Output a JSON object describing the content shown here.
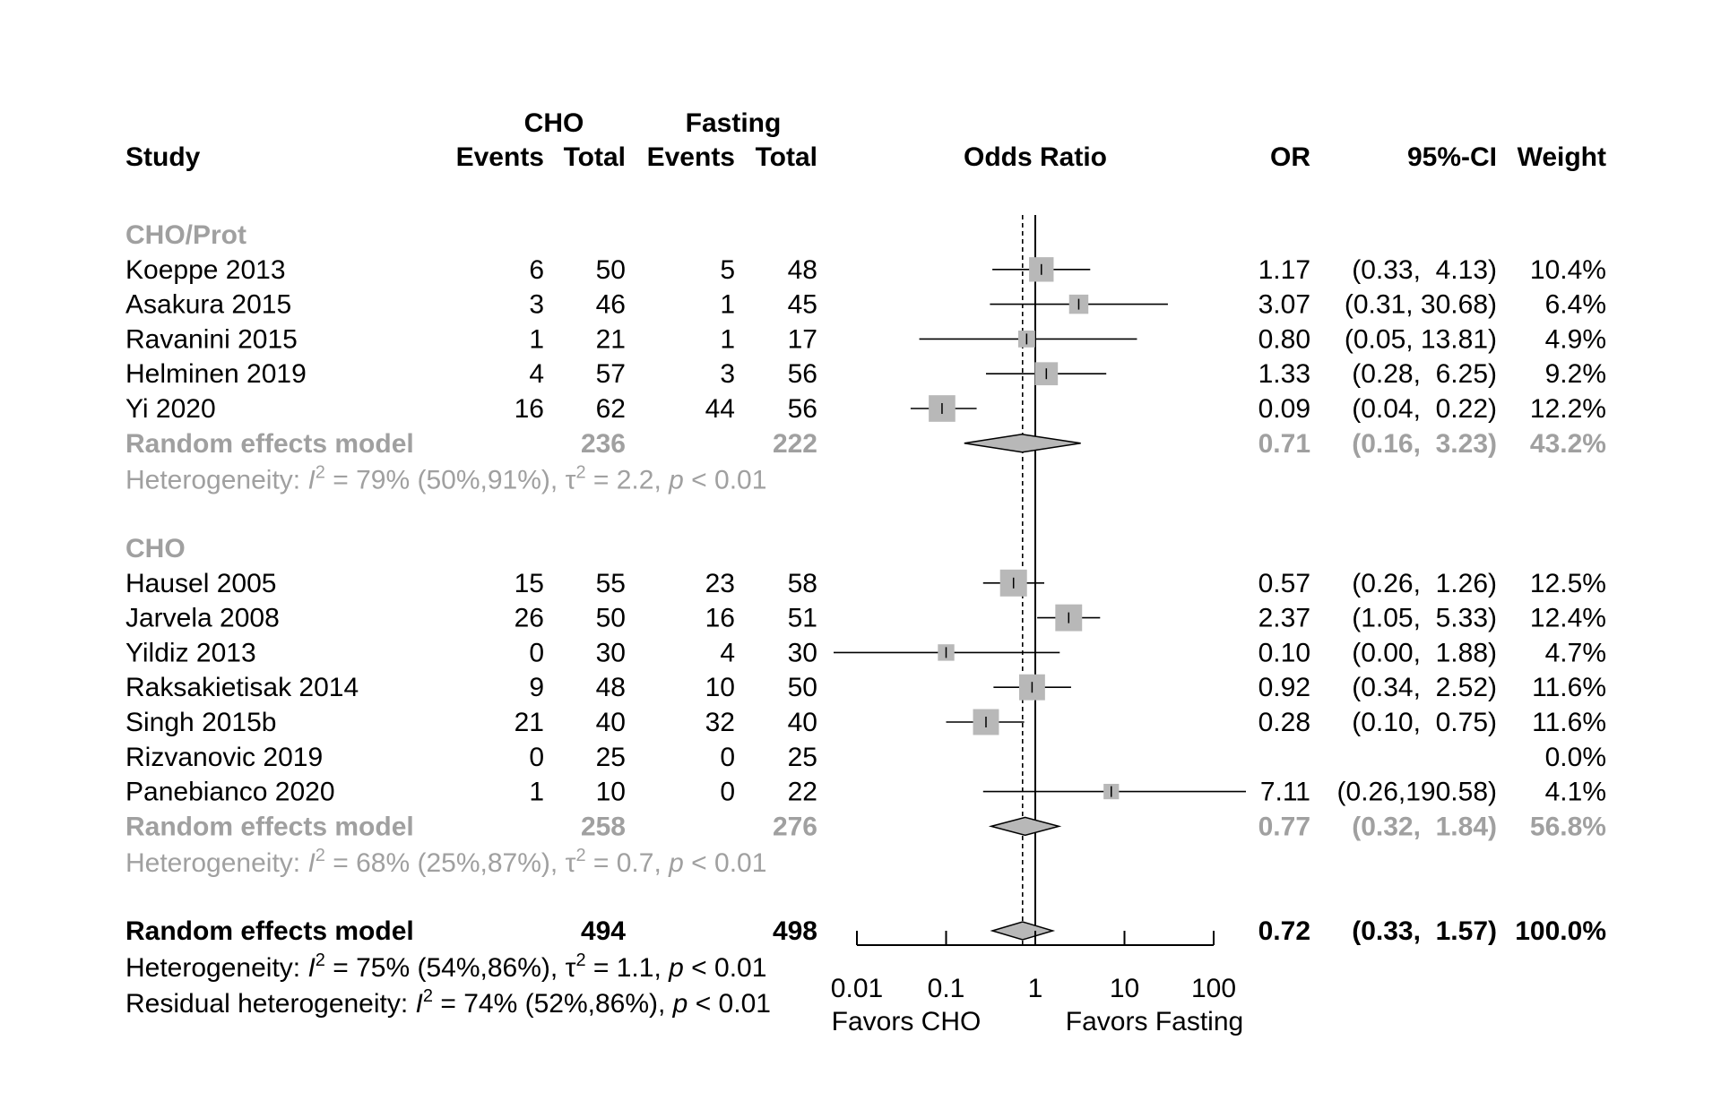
{
  "chart_data": {
    "type": "forest",
    "measure": "Odds Ratio",
    "x_scale": "log",
    "xlim": [
      0.01,
      100
    ],
    "ticks": [
      {
        "value": 0.01,
        "label": "0.01"
      },
      {
        "value": 0.1,
        "label": "0.1"
      },
      {
        "value": 1,
        "label": "1"
      },
      {
        "value": 10,
        "label": "10"
      },
      {
        "value": 100,
        "label": "100"
      }
    ],
    "favors_left": "Favors CHO",
    "favors_right": "Favors Fasting",
    "reference_value": 1,
    "pooled_line_value": 0.72,
    "headers": {
      "group1": "CHO",
      "group2": "Fasting",
      "study": "Study",
      "events1": "Events",
      "total1": "Total",
      "events2": "Events",
      "total2": "Total",
      "plot": "Odds Ratio",
      "or": "OR",
      "ci": "95%-CI",
      "weight": "Weight"
    },
    "subgroups": [
      {
        "name": "CHO/Prot",
        "studies": [
          {
            "study": "Koeppe 2013",
            "e1": "6",
            "n1": "50",
            "e2": "5",
            "n2": "48",
            "or": 1.17,
            "lo": 0.33,
            "hi": 4.13,
            "or_text": "1.17",
            "ci_text": "(0.33,  4.13)",
            "weight": "10.4%",
            "w": 10.4
          },
          {
            "study": "Asakura 2015",
            "e1": "3",
            "n1": "46",
            "e2": "1",
            "n2": "45",
            "or": 3.07,
            "lo": 0.31,
            "hi": 30.68,
            "or_text": "3.07",
            "ci_text": "(0.31, 30.68)",
            "weight": "6.4%",
            "w": 6.4
          },
          {
            "study": "Ravanini 2015",
            "e1": "1",
            "n1": "21",
            "e2": "1",
            "n2": "17",
            "or": 0.8,
            "lo": 0.05,
            "hi": 13.81,
            "or_text": "0.80",
            "ci_text": "(0.05, 13.81)",
            "weight": "4.9%",
            "w": 4.9
          },
          {
            "study": "Helminen 2019",
            "e1": "4",
            "n1": "57",
            "e2": "3",
            "n2": "56",
            "or": 1.33,
            "lo": 0.28,
            "hi": 6.25,
            "or_text": "1.33",
            "ci_text": "(0.28,  6.25)",
            "weight": "9.2%",
            "w": 9.2
          },
          {
            "study": "Yi 2020",
            "e1": "16",
            "n1": "62",
            "e2": "44",
            "n2": "56",
            "or": 0.09,
            "lo": 0.04,
            "hi": 0.22,
            "or_text": "0.09",
            "ci_text": "(0.04,  0.22)",
            "weight": "12.2%",
            "w": 12.2
          }
        ],
        "model": {
          "label": "Random effects model",
          "n1": "236",
          "n2": "222",
          "or": 0.71,
          "lo": 0.16,
          "hi": 3.23,
          "or_text": "0.71",
          "ci_text": "(0.16,  3.23)",
          "weight": "43.2%"
        },
        "heterogeneity": {
          "prefix": "Heterogeneity: ",
          "I": "I",
          "sup": "2",
          "mid": " = 79% (50%,91%), ",
          "tau": "τ",
          "tau_sup": "2",
          "tau_val": " = 2.2, ",
          "p": "p",
          "p_val": " < 0.01"
        }
      },
      {
        "name": "CHO",
        "studies": [
          {
            "study": "Hausel 2005",
            "e1": "15",
            "n1": "55",
            "e2": "23",
            "n2": "58",
            "or": 0.57,
            "lo": 0.26,
            "hi": 1.26,
            "or_text": "0.57",
            "ci_text": "(0.26,  1.26)",
            "weight": "12.5%",
            "w": 12.5
          },
          {
            "study": "Jarvela 2008",
            "e1": "26",
            "n1": "50",
            "e2": "16",
            "n2": "51",
            "or": 2.37,
            "lo": 1.05,
            "hi": 5.33,
            "or_text": "2.37",
            "ci_text": "(1.05,  5.33)",
            "weight": "12.4%",
            "w": 12.4
          },
          {
            "study": "Yildiz 2013",
            "e1": "0",
            "n1": "30",
            "e2": "4",
            "n2": "30",
            "or": 0.1,
            "lo": 0.005,
            "hi": 1.88,
            "or_text": "0.10",
            "ci_text": "(0.00,  1.88)",
            "weight": "4.7%",
            "w": 4.7,
            "clip_left": true
          },
          {
            "study": "Raksakietisak 2014",
            "e1": "9",
            "n1": "48",
            "e2": "10",
            "n2": "50",
            "or": 0.92,
            "lo": 0.34,
            "hi": 2.52,
            "or_text": "0.92",
            "ci_text": "(0.34,  2.52)",
            "weight": "11.6%",
            "w": 11.6
          },
          {
            "study": "Singh 2015b",
            "e1": "21",
            "n1": "40",
            "e2": "32",
            "n2": "40",
            "or": 0.28,
            "lo": 0.1,
            "hi": 0.75,
            "or_text": "0.28",
            "ci_text": "(0.10,  0.75)",
            "weight": "11.6%",
            "w": 11.6
          },
          {
            "study": "Rizvanovic 2019",
            "e1": "0",
            "n1": "25",
            "e2": "0",
            "n2": "25",
            "or": null,
            "lo": null,
            "hi": null,
            "or_text": "",
            "ci_text": "",
            "weight": "0.0%",
            "w": 0
          },
          {
            "study": "Panebianco 2020",
            "e1": "1",
            "n1": "10",
            "e2": "0",
            "n2": "22",
            "or": 7.11,
            "lo": 0.26,
            "hi": 190.58,
            "or_text": "7.11",
            "ci_text": "(0.26,190.58)",
            "weight": "4.1%",
            "w": 4.1,
            "clip_right": true
          }
        ],
        "model": {
          "label": "Random effects model",
          "n1": "258",
          "n2": "276",
          "or": 0.77,
          "lo": 0.32,
          "hi": 1.84,
          "or_text": "0.77",
          "ci_text": "(0.32,  1.84)",
          "weight": "56.8%"
        },
        "heterogeneity": {
          "prefix": "Heterogeneity: ",
          "I": "I",
          "sup": "2",
          "mid": " = 68% (25%,87%), ",
          "tau": "τ",
          "tau_sup": "2",
          "tau_val": " = 0.7, ",
          "p": "p",
          "p_val": " < 0.01"
        }
      }
    ],
    "overall": {
      "label": "Random effects model",
      "n1": "494",
      "n2": "498",
      "or": 0.72,
      "lo": 0.33,
      "hi": 1.57,
      "or_text": "0.72",
      "ci_text": "(0.33,  1.57)",
      "weight": "100.0%",
      "heterogeneity": {
        "prefix": "Heterogeneity: ",
        "I": "I",
        "sup": "2",
        "mid": " = 75% (54%,86%), ",
        "tau": "τ",
        "tau_sup": "2",
        "tau_val": " = 1.1, ",
        "p": "p",
        "p_val": " < 0.01"
      },
      "residual": {
        "prefix": "Residual heterogeneity: ",
        "I": "I",
        "sup": "2",
        "mid": " = 74% (52%,86%), ",
        "p": "p",
        "p_val": " < 0.01"
      }
    },
    "colors": {
      "text": "#000000",
      "subgroup_text": "#a0a0a0",
      "square_fill": "#b8b8b8",
      "diamond_fill": "#b8b8b8"
    }
  }
}
